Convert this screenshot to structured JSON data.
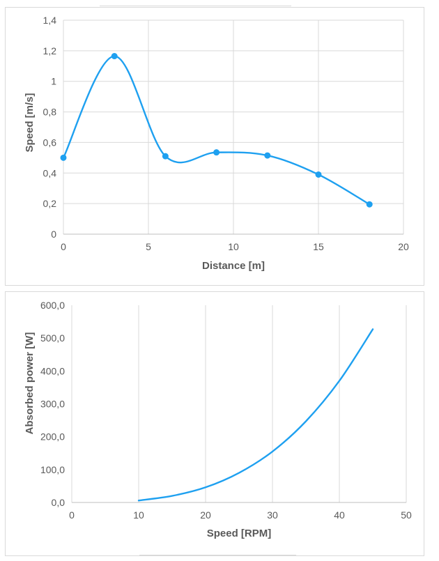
{
  "chart_data": [
    {
      "type": "line",
      "smooth": true,
      "markers": true,
      "xlabel": "Distance [m]",
      "ylabel": "Speed [m/s]",
      "xlim": [
        0,
        20
      ],
      "ylim": [
        0,
        1.4
      ],
      "xticks": [
        0,
        5,
        10,
        15,
        20
      ],
      "xtick_labels": [
        "0",
        "5",
        "10",
        "15",
        "20"
      ],
      "yticks": [
        0,
        0.2,
        0.4,
        0.6,
        0.8,
        1.0,
        1.2,
        1.4
      ],
      "ytick_labels": [
        "0",
        "0,2",
        "0,4",
        "0,6",
        "0,8",
        "1",
        "1,2",
        "1,4"
      ],
      "grid": "both",
      "color": "#1ea0f0",
      "x": [
        0,
        3,
        6,
        9,
        12,
        15,
        18
      ],
      "y": [
        0.5,
        1.165,
        0.51,
        0.535,
        0.515,
        0.39,
        0.195
      ]
    },
    {
      "type": "line",
      "smooth": true,
      "markers": false,
      "xlabel": "Speed [RPM]",
      "ylabel": "Absorbed power [W]",
      "xlim": [
        0,
        50
      ],
      "ylim": [
        0,
        600
      ],
      "xticks": [
        0,
        10,
        20,
        30,
        40,
        50
      ],
      "xtick_labels": [
        "0",
        "10",
        "20",
        "30",
        "40",
        "50"
      ],
      "yticks": [
        0,
        100,
        200,
        300,
        400,
        500,
        600
      ],
      "ytick_labels": [
        "0,0",
        "100,0",
        "200,0",
        "300,0",
        "400,0",
        "500,0",
        "600,0"
      ],
      "grid": "x",
      "color": "#1ea0f0",
      "x": [
        10,
        15,
        20,
        25,
        30,
        35,
        40,
        45
      ],
      "y": [
        6,
        20,
        46,
        90,
        155,
        247,
        370,
        527
      ]
    }
  ]
}
